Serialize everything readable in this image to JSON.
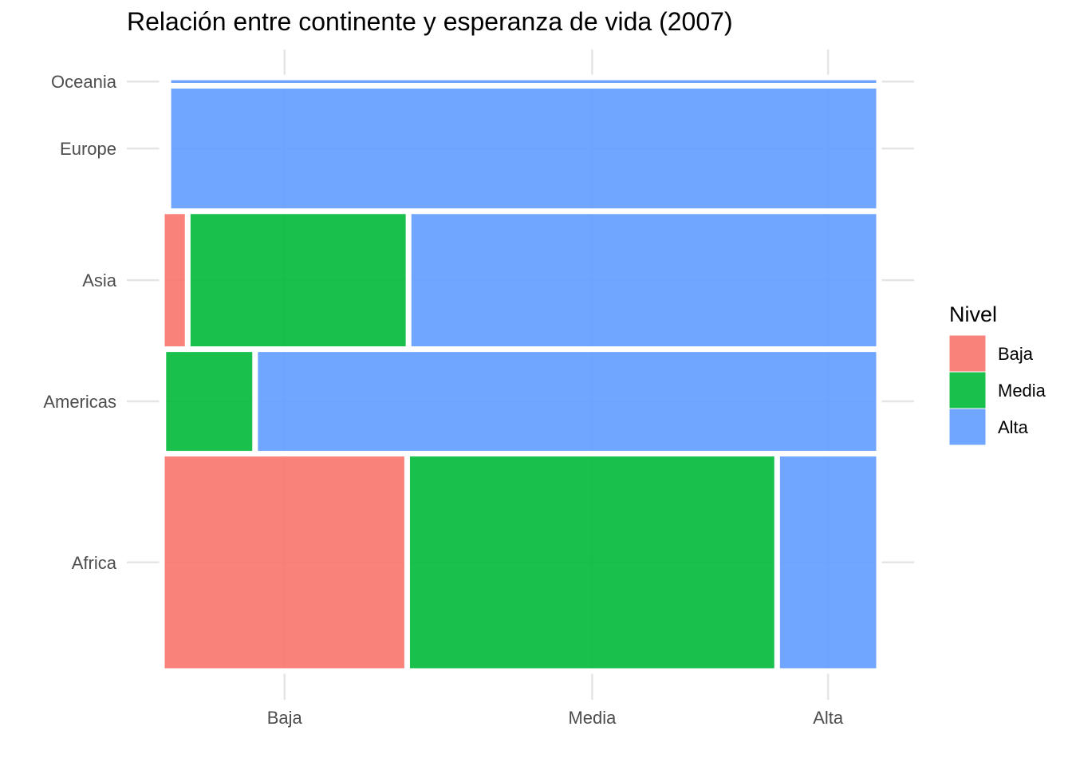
{
  "chart_data": {
    "type": "mosaic",
    "title": "Relación entre continente y esperanza de vida (2007)",
    "xlabel": "",
    "ylabel": "",
    "x_categories": [
      "Baja",
      "Media",
      "Alta"
    ],
    "y_categories": [
      "Africa",
      "Americas",
      "Asia",
      "Europe",
      "Oceania"
    ],
    "fill_variable": "Nivel",
    "rows": [
      {
        "name": "Africa",
        "weight": 52,
        "segments": {
          "Baja": 0.342,
          "Media": 0.516,
          "Alta": 0.142
        }
      },
      {
        "name": "Americas",
        "weight": 25,
        "segments": {
          "Baja": 0.002,
          "Media": 0.128,
          "Alta": 0.87
        }
      },
      {
        "name": "Asia",
        "weight": 33,
        "segments": {
          "Baja": 0.036,
          "Media": 0.308,
          "Alta": 0.656
        }
      },
      {
        "name": "Europe",
        "weight": 30,
        "segments": {
          "Baja": 0.004,
          "Media": 0.005,
          "Alta": 0.991
        }
      },
      {
        "name": "Oceania",
        "weight": 2,
        "segments": {
          "Baja": 0.004,
          "Media": 0.005,
          "Alta": 0.991
        }
      }
    ],
    "legend": {
      "title": "Nivel",
      "position": "right",
      "items": [
        {
          "label": "Baja",
          "color": "#F8766D"
        },
        {
          "label": "Media",
          "color": "#00BA38"
        },
        {
          "label": "Alta",
          "color": "#619CFF"
        }
      ]
    },
    "grid": true
  }
}
